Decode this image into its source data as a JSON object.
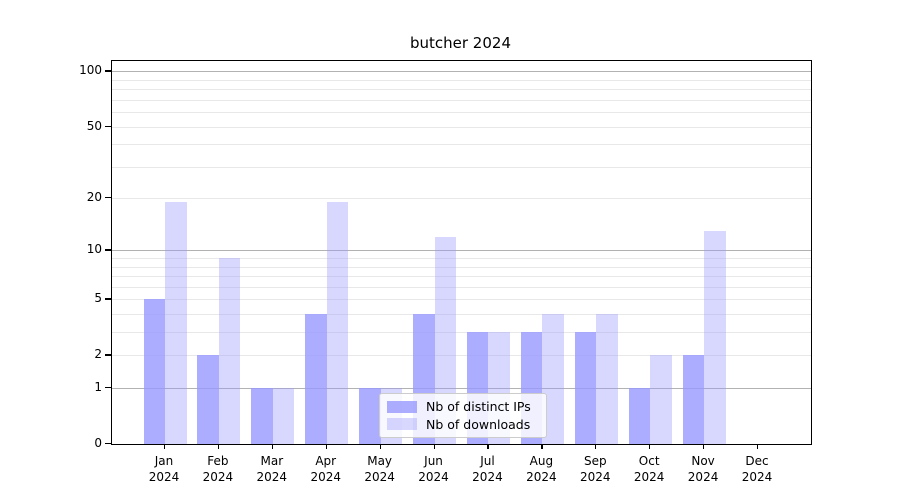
{
  "chart_data": {
    "type": "bar",
    "title": "butcher 2024",
    "categories": [
      "Jan",
      "Feb",
      "Mar",
      "Apr",
      "May",
      "Jun",
      "Jul",
      "Aug",
      "Sep",
      "Oct",
      "Nov",
      "Dec"
    ],
    "category_year": "2024",
    "series": [
      {
        "name": "Nb of distinct IPs",
        "values": [
          5,
          2,
          1,
          4,
          1,
          4,
          3,
          3,
          3,
          1,
          2,
          0
        ],
        "color": "rgba(153,153,255,0.80)"
      },
      {
        "name": "Nb of downloads",
        "values": [
          19,
          9,
          1,
          19,
          1,
          12,
          3,
          4,
          4,
          2,
          13,
          0
        ],
        "color": "rgba(153,153,255,0.38)"
      }
    ],
    "yscale": "log10(value+1)",
    "ylim": [
      0,
      114
    ],
    "yticks_labeled": [
      0,
      1,
      2,
      5,
      10,
      20,
      50,
      100
    ],
    "gridlines_major": [
      1,
      10,
      100
    ],
    "gridlines_minor": [
      2,
      3,
      4,
      5,
      6,
      7,
      8,
      9,
      20,
      30,
      40,
      50,
      60,
      70,
      80,
      90
    ],
    "grid": true,
    "legend_position": "lower-center-left",
    "colors": {
      "bar_base": "#9999ff",
      "grid_major": "#b2b2b2",
      "grid_minor": "#e8e8e8",
      "axis": "#000000",
      "legend_border": "#cccccc"
    }
  }
}
